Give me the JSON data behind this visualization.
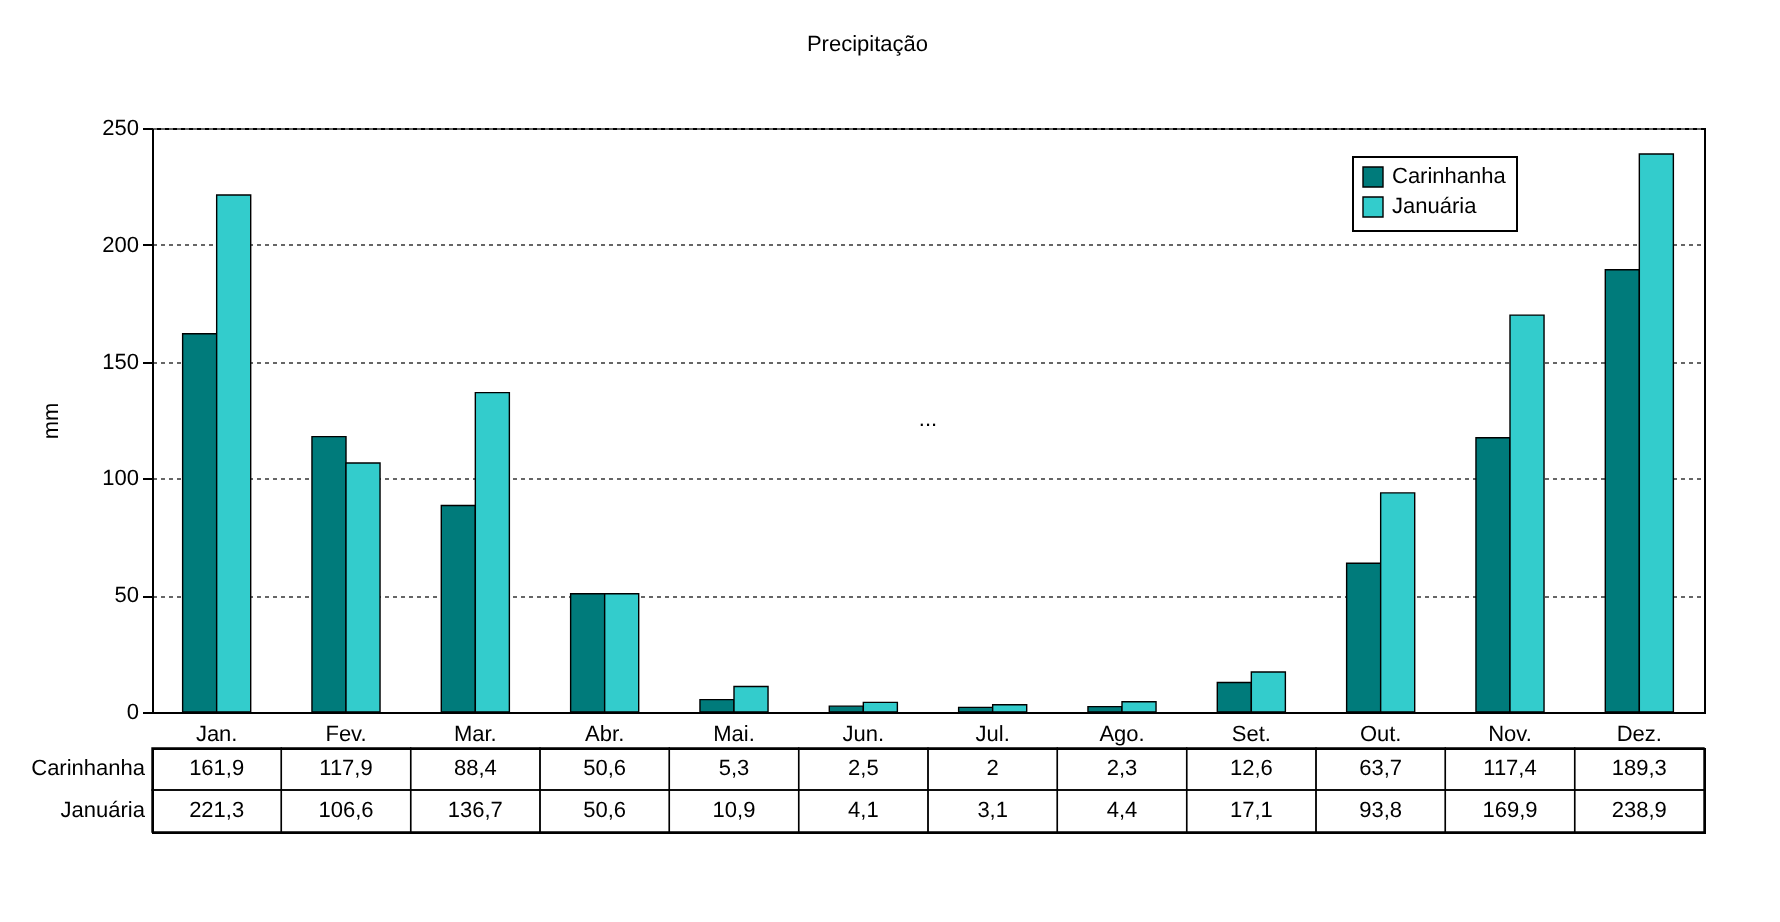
{
  "chart_data": {
    "type": "bar",
    "title": "Precipitação",
    "ylabel": "mm",
    "annotations": [
      "..."
    ],
    "categories": [
      "Jan.",
      "Fev.",
      "Mar.",
      "Abr.",
      "Mai.",
      "Jun.",
      "Jul.",
      "Ago.",
      "Set.",
      "Out.",
      "Nov.",
      "Dez."
    ],
    "series": [
      {
        "name": "Carinhanha",
        "color": "#007b7b",
        "values": [
          161.9,
          117.9,
          88.4,
          50.6,
          5.3,
          2.5,
          2,
          2.3,
          12.6,
          63.7,
          117.4,
          189.3
        ],
        "value_labels": [
          "161,9",
          "117,9",
          "88,4",
          "50,6",
          "5,3",
          "2,5",
          "2",
          "2,3",
          "12,6",
          "63,7",
          "117,4",
          "189,3"
        ]
      },
      {
        "name": "Januária",
        "color": "#33cccc",
        "values": [
          221.3,
          106.6,
          136.7,
          50.6,
          10.9,
          4.1,
          3.1,
          4.4,
          17.1,
          93.8,
          169.9,
          238.9
        ],
        "value_labels": [
          "221,3",
          "106,6",
          "136,7",
          "50,6",
          "10,9",
          "4,1",
          "3,1",
          "4,4",
          "17,1",
          "93,8",
          "169,9",
          "238,9"
        ]
      }
    ],
    "ylim": [
      0,
      250
    ],
    "yticks": [
      0,
      50,
      100,
      150,
      200,
      250
    ],
    "grid": "y",
    "legend": "top right"
  }
}
